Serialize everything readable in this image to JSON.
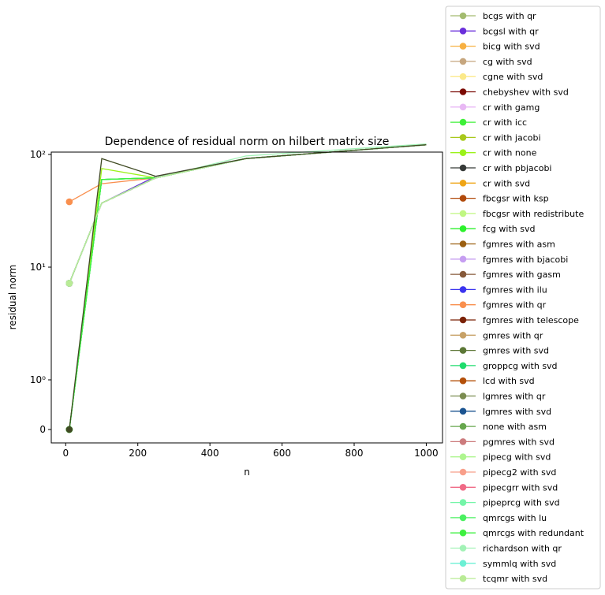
{
  "chart_data": {
    "type": "line",
    "title": "Dependence of residual norm on hilbert matrix size",
    "xlabel": "n",
    "ylabel": "residual norm",
    "xlim": [
      -40,
      1045
    ],
    "x_ticks": [
      0,
      200,
      400,
      600,
      800,
      1000
    ],
    "y_scale": "symlog",
    "y_ticks": [
      {
        "value": 0,
        "label": "0"
      },
      {
        "value": 1,
        "label": "10⁰"
      },
      {
        "value": 10,
        "label": "10¹"
      },
      {
        "value": 100,
        "label": "10²"
      }
    ],
    "legend_position": "outside-right",
    "x": [
      10,
      100,
      250,
      500,
      1000
    ],
    "series": [
      {
        "name": "bcgs with qr",
        "color": "#a3bb6f",
        "values": [
          7.2,
          37,
          62,
          92,
          122
        ]
      },
      {
        "name": "bcgsl with qr",
        "color": "#6a2fdb",
        "values": [
          7.2,
          37,
          64,
          92,
          122
        ]
      },
      {
        "name": "bicg with svd",
        "color": "#f7b041",
        "values": [
          7.2,
          37,
          62,
          92,
          122
        ]
      },
      {
        "name": "cg with svd",
        "color": "#c6a67e",
        "values": [
          7.2,
          37,
          62,
          92,
          122
        ]
      },
      {
        "name": "cgne with svd",
        "color": "#fbe989",
        "values": [
          7.2,
          37,
          62,
          92,
          122
        ]
      },
      {
        "name": "chebyshev with svd",
        "color": "#7b0a04",
        "values": [
          7.2,
          37,
          62,
          92,
          122
        ]
      },
      {
        "name": "cr with gamg",
        "color": "#e8b8f4",
        "values": [
          7.2,
          37,
          62,
          92,
          122
        ]
      },
      {
        "name": "cr with icc",
        "color": "#3ef038",
        "values": [
          0,
          60,
          62,
          92,
          122
        ]
      },
      {
        "name": "cr with jacobi",
        "color": "#a8c81c",
        "values": [
          7.2,
          37,
          62,
          92,
          122
        ]
      },
      {
        "name": "cr with none",
        "color": "#9bf21a",
        "values": [
          0,
          75,
          62,
          92,
          122
        ]
      },
      {
        "name": "cr with pbjacobi",
        "color": "#363a38",
        "values": [
          7.2,
          37,
          62,
          92,
          122
        ]
      },
      {
        "name": "cr with svd",
        "color": "#efa516",
        "values": [
          7.2,
          37,
          62,
          92,
          122
        ]
      },
      {
        "name": "fbcgsr with ksp",
        "color": "#b14a0b",
        "values": [
          7.2,
          37,
          62,
          92,
          122
        ]
      },
      {
        "name": "fbcgsr with redistribute",
        "color": "#c0f782",
        "values": [
          7.2,
          37,
          62,
          92,
          122
        ]
      },
      {
        "name": "fcg with svd",
        "color": "#2cf12c",
        "values": [
          0,
          60,
          62,
          92,
          122
        ]
      },
      {
        "name": "fgmres with asm",
        "color": "#9b5f10",
        "values": [
          7.2,
          37,
          62,
          92,
          122
        ]
      },
      {
        "name": "fgmres with bjacobi",
        "color": "#c69ef1",
        "values": [
          7.2,
          37,
          62,
          92,
          122
        ]
      },
      {
        "name": "fgmres with gasm",
        "color": "#86593a",
        "values": [
          7.2,
          37,
          62,
          92,
          122
        ]
      },
      {
        "name": "fgmres with ilu",
        "color": "#3b34ef",
        "values": [
          7.2,
          37,
          62,
          92,
          122
        ]
      },
      {
        "name": "fgmres with qr",
        "color": "#f98f4e",
        "values": [
          38,
          55,
          62,
          92,
          122
        ]
      },
      {
        "name": "fgmres with telescope",
        "color": "#7b2206",
        "values": [
          7.2,
          37,
          62,
          92,
          122
        ]
      },
      {
        "name": "gmres with qr",
        "color": "#c7a166",
        "values": [
          7.2,
          37,
          62,
          92,
          122
        ]
      },
      {
        "name": "gmres with svd",
        "color": "#5c7736",
        "values": [
          7.2,
          37,
          62,
          92,
          122
        ]
      },
      {
        "name": "groppcg with svd",
        "color": "#1ddc6c",
        "values": [
          0,
          60,
          62,
          92,
          122
        ]
      },
      {
        "name": "lcd with svd",
        "color": "#b4500a",
        "values": [
          7.2,
          37,
          62,
          92,
          122
        ]
      },
      {
        "name": "lgmres with qr",
        "color": "#7b8c50",
        "values": [
          7.2,
          37,
          62,
          92,
          122
        ]
      },
      {
        "name": "lgmres with svd",
        "color": "#1b5491",
        "values": [
          7.2,
          37,
          62,
          92,
          122
        ]
      },
      {
        "name": "none with asm",
        "color": "#66a64d",
        "values": [
          7.2,
          37,
          62,
          92,
          122
        ]
      },
      {
        "name": "pgmres with svd",
        "color": "#cc7b7d",
        "values": [
          7.2,
          37,
          62,
          92,
          122
        ]
      },
      {
        "name": "pipecg with svd",
        "color": "#aef58f",
        "values": [
          7.2,
          37,
          62,
          92,
          122
        ]
      },
      {
        "name": "pipecg2 with svd",
        "color": "#f89f8a",
        "values": [
          7.2,
          37,
          62,
          92,
          122
        ]
      },
      {
        "name": "pipecgrr with svd",
        "color": "#f06a86",
        "values": [
          7.2,
          37,
          62,
          92,
          122
        ]
      },
      {
        "name": "pipeprcg with svd",
        "color": "#74f5a8",
        "values": [
          7.2,
          37,
          62,
          92,
          122
        ]
      },
      {
        "name": "qmrcgs with lu",
        "color": "#4af060",
        "values": [
          0,
          60,
          62,
          92,
          122
        ]
      },
      {
        "name": "qmrcgs with redundant",
        "color": "#3ef040",
        "values": [
          0,
          60,
          62,
          92,
          122
        ]
      },
      {
        "name": "richardson with qr",
        "color": "#a2f2b6",
        "values": [
          7.2,
          37,
          62,
          97,
          124
        ]
      },
      {
        "name": "symmlq with svd",
        "color": "#6cf0d4",
        "values": [
          7.2,
          37,
          62,
          92,
          122
        ]
      },
      {
        "name": "tcqmr with svd",
        "color": "#b9eb96",
        "values": [
          7.2,
          37,
          62,
          92,
          122
        ]
      },
      {
        "name": "",
        "color": "#3f4a22",
        "values": [
          0,
          92,
          64,
          92,
          122
        ]
      }
    ]
  }
}
